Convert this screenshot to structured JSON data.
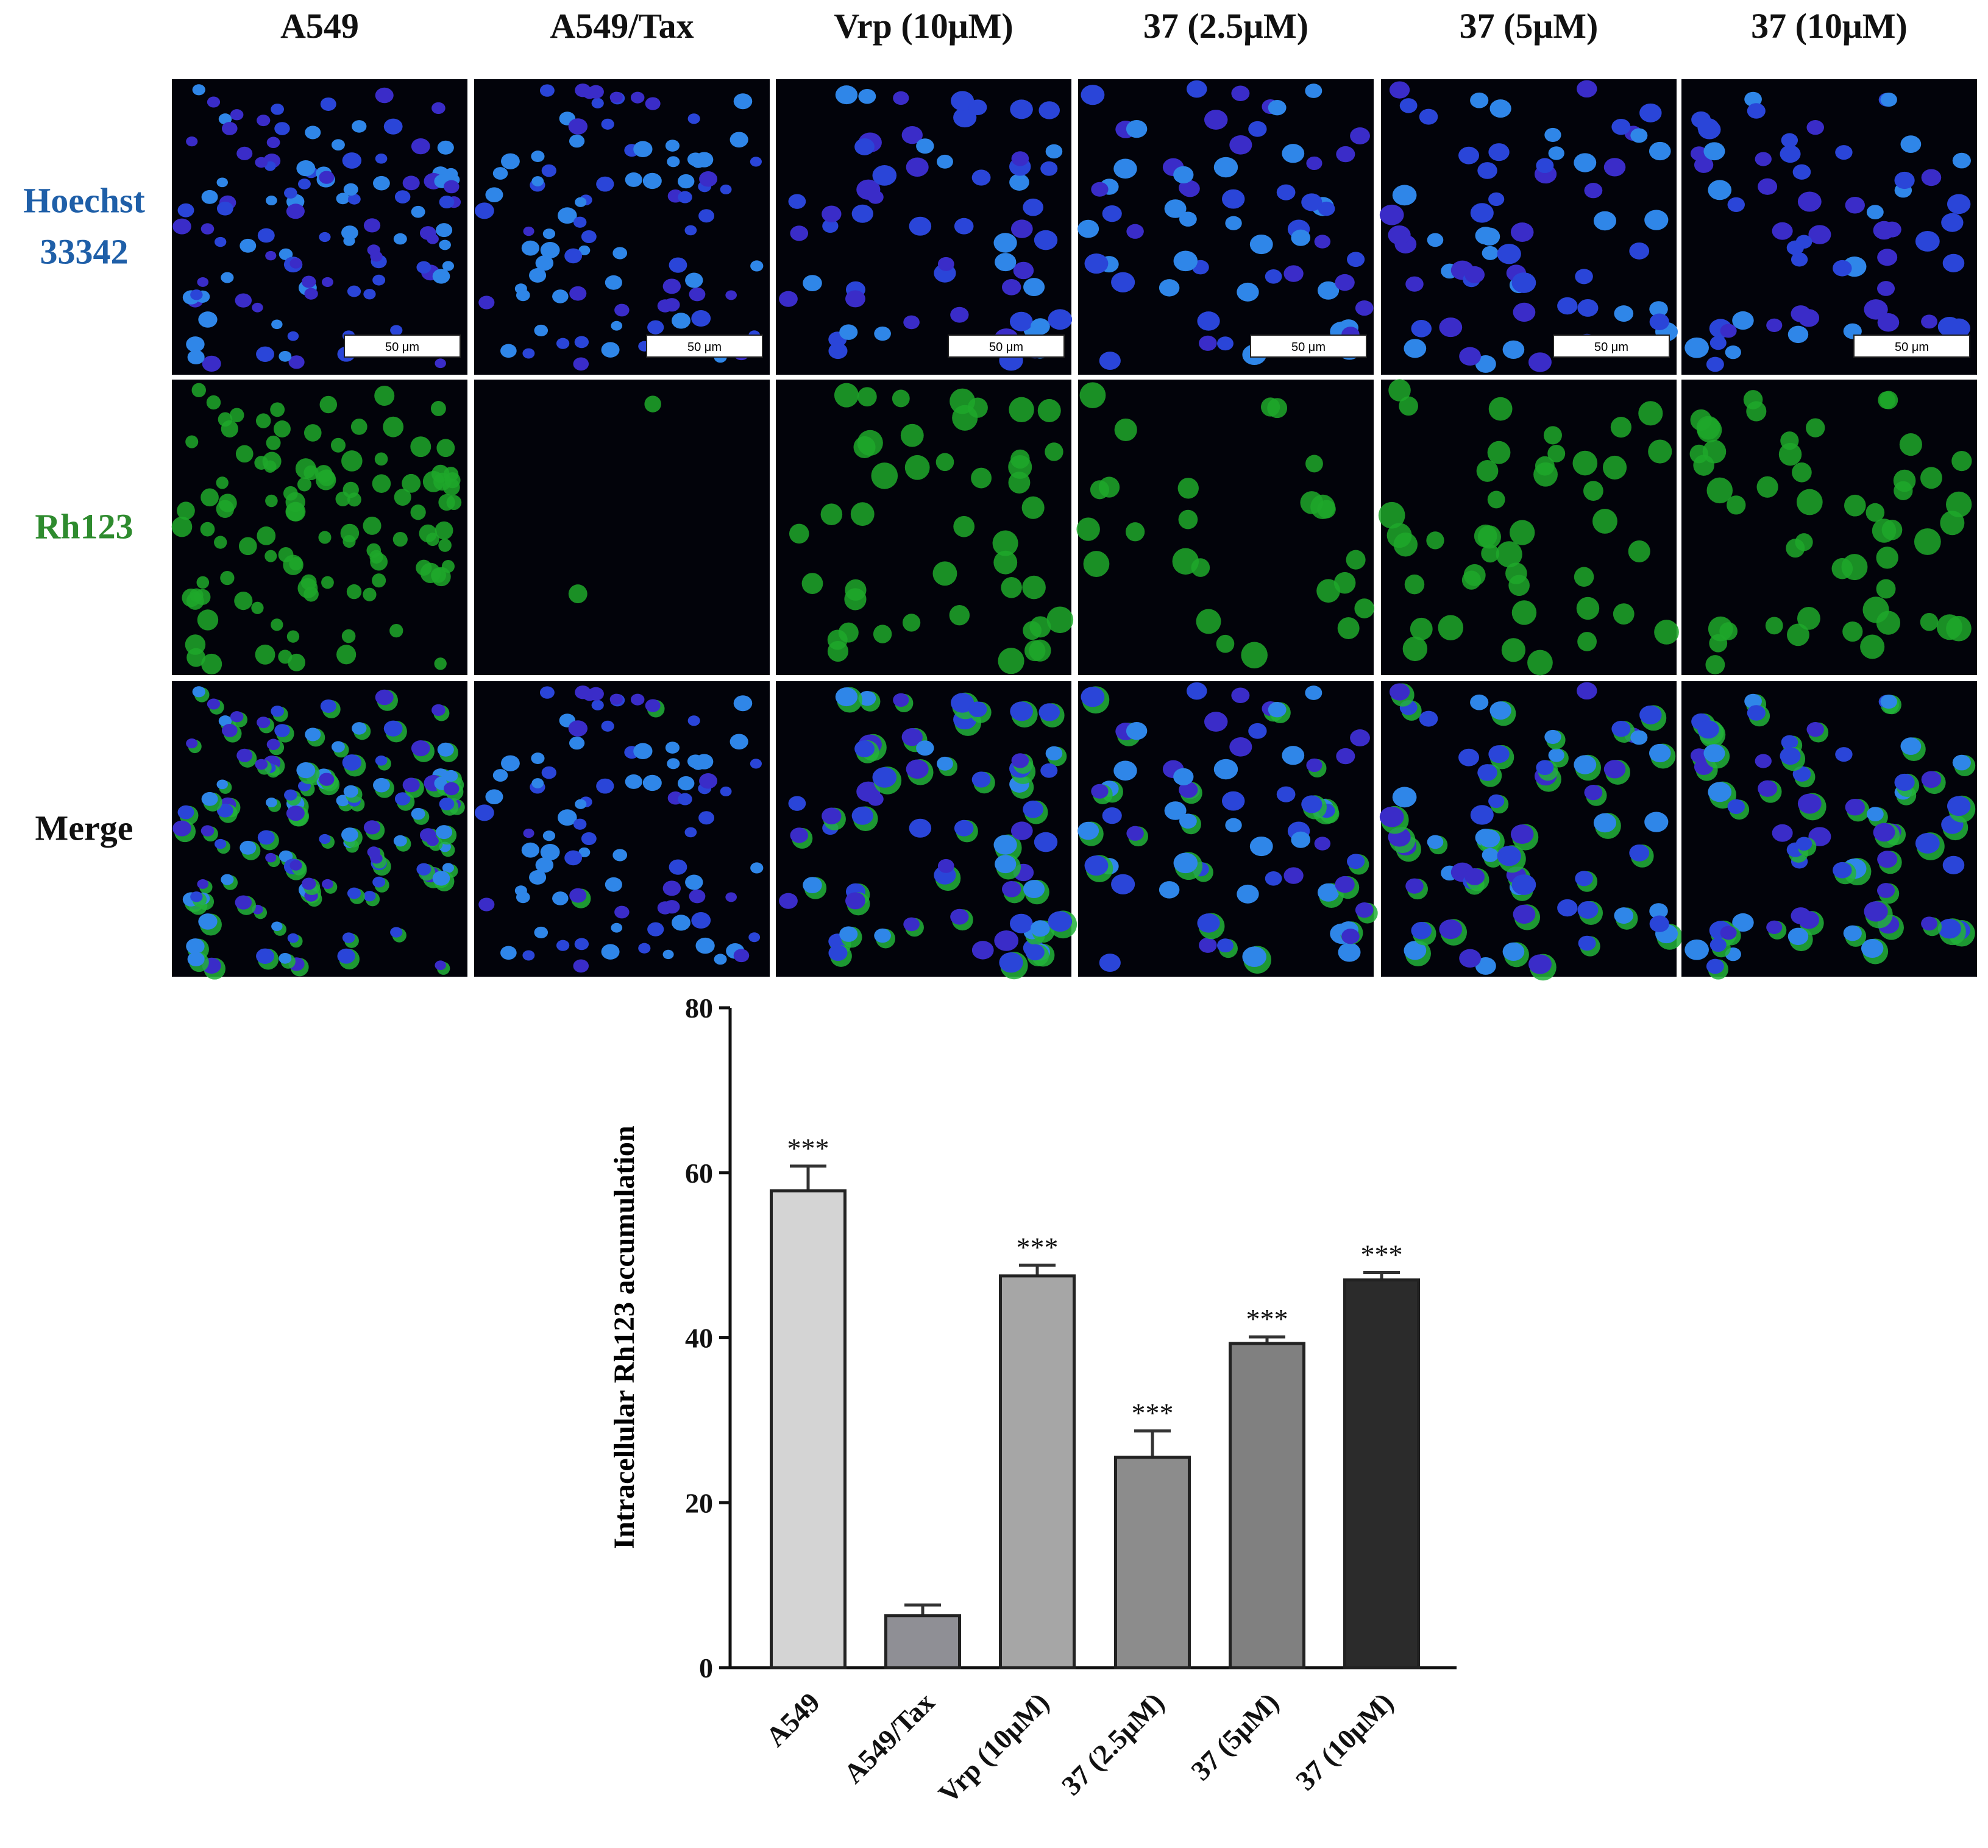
{
  "figure": {
    "panel_columns": [
      "A549",
      "A549/Tax",
      "Vrp (10μM)",
      "37 (2.5μM)",
      "37 (5μM)",
      "37 (10μM)"
    ],
    "panel_rows": [
      [
        "Hoechst",
        "33342"
      ],
      [
        "Rh123"
      ],
      [
        "Merge"
      ]
    ],
    "scale_bar_label": "50 μm"
  },
  "chart_data": {
    "type": "bar",
    "y_label": "Intracellular Rh123 accumulation",
    "categories": [
      "A549",
      "A549/Tax",
      "Vrp (10μM)",
      "37 (2.5μM)",
      "37 (5μM)",
      "37 (10μM)"
    ],
    "values": [
      57.8,
      6.3,
      47.5,
      25.5,
      39.3,
      47.0
    ],
    "errors": [
      3.0,
      1.3,
      1.3,
      3.2,
      0.8,
      0.9
    ],
    "annotations": [
      "***",
      null,
      "***",
      "***",
      "***",
      "***"
    ],
    "colors": [
      "#d4d4d4",
      "#8f8f95",
      "#a6a6a6",
      "#8c8c8c",
      "#808080",
      "#2b2b2b"
    ],
    "ylim": [
      0,
      80
    ],
    "yticks": [
      0,
      20,
      40,
      60,
      80
    ]
  }
}
